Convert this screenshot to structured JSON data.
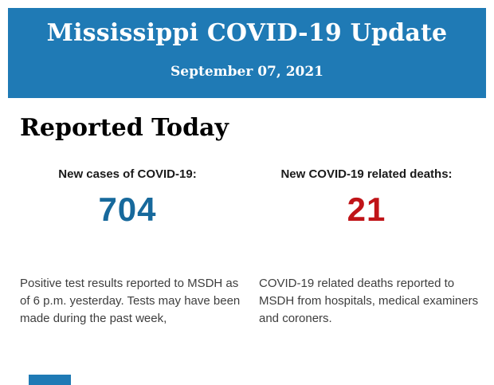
{
  "header": {
    "title": "Mississippi COVID-19 Update",
    "date": "September 07, 2021"
  },
  "main": {
    "section_title": "Reported Today",
    "stats": [
      {
        "label": "New cases of COVID-19:",
        "value": "704",
        "description": "Positive test results reported to MSDH as of 6 p.m. yesterday. Tests may have been made during the past week,"
      },
      {
        "label": "New COVID-19 related deaths:",
        "value": "21",
        "description": "COVID-19 related deaths reported to MSDH from hospitals, medical examiners and coroners."
      }
    ]
  },
  "colors": {
    "header_bg": "#1f7ab5",
    "cases_value": "#17699c",
    "deaths_value": "#c01418"
  }
}
